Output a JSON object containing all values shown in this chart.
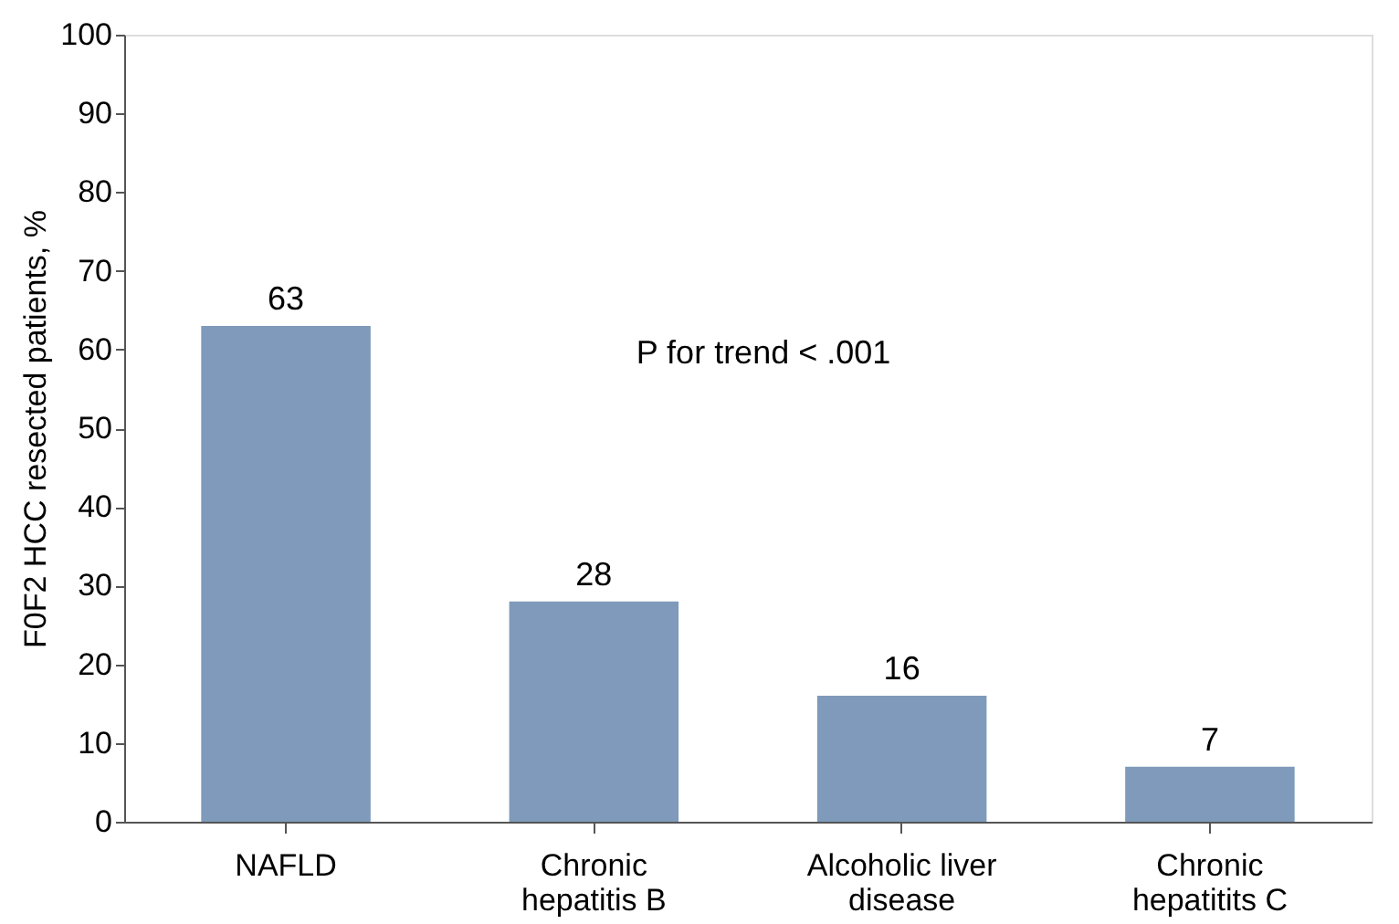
{
  "chart_data": {
    "type": "bar",
    "ylabel": "F0F2 HCC resected patients, %",
    "categories": [
      "NAFLD",
      "Chronic hepatitis B",
      "Alcoholic liver disease",
      "Chronic hepatitits C"
    ],
    "values": [
      63,
      28,
      16,
      7
    ],
    "color": "#7f9aba",
    "data_labels": true,
    "ylim": [
      0,
      100
    ],
    "yticks": [
      0,
      10,
      20,
      30,
      40,
      50,
      60,
      70,
      80,
      90,
      100
    ],
    "grid": false,
    "annotations": [
      "P for trend < .001"
    ]
  }
}
